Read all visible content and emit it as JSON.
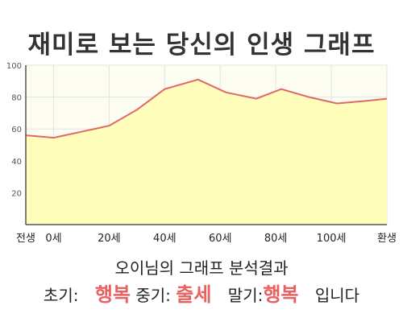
{
  "title": "재미로 보는 당신의 인생 그래프",
  "chart_data": {
    "type": "area",
    "x_ticks": [
      {
        "x": -10,
        "label": "전생"
      },
      {
        "x": 0,
        "label": "0세"
      },
      {
        "x": 20,
        "label": "20세"
      },
      {
        "x": 40,
        "label": "40세"
      },
      {
        "x": 60,
        "label": "60세"
      },
      {
        "x": 80,
        "label": "80세"
      },
      {
        "x": 100,
        "label": "100세"
      },
      {
        "x": 120,
        "label": "환생"
      }
    ],
    "xlim": [
      -10,
      120
    ],
    "ylim": [
      0,
      100
    ],
    "y_ticks": [
      20,
      40,
      60,
      80,
      100
    ],
    "grid": true,
    "series": [
      {
        "x": [
          -10,
          -3,
          0,
          12,
          20,
          30,
          40,
          52,
          62,
          73,
          82,
          92,
          102,
          112,
          120
        ],
        "values": [
          56,
          55,
          54.5,
          59,
          62,
          72,
          85,
          91,
          83,
          79,
          85,
          80,
          76,
          77.5,
          79
        ]
      }
    ],
    "colors": {
      "line": "#e06868",
      "fill": "#ffffbb",
      "upper_bg": "#fefdf2",
      "grid": "#e3e3e3"
    }
  },
  "analysis_title": "오이님의 그래프 분석결과",
  "result": {
    "early_label": "초기:",
    "early_value": "행복",
    "mid_label": "중기:",
    "mid_value": "출세",
    "late_label": "말기:",
    "late_value": "행복",
    "ending": "입니다"
  }
}
